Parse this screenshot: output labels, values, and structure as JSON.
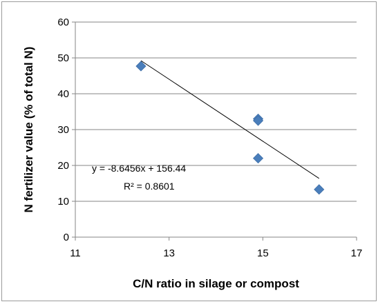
{
  "chart_data": {
    "type": "scatter",
    "xlabel": "C/N ratio in silage or compost",
    "ylabel": "N fertilizer value (% of total N)",
    "xlim": [
      11,
      17
    ],
    "ylim": [
      0,
      60
    ],
    "x_ticks": [
      11,
      13,
      15,
      17
    ],
    "y_ticks": [
      0,
      10,
      20,
      30,
      40,
      50,
      60
    ],
    "grid": "horizontal",
    "legend": "none",
    "series": [
      {
        "color": "#4a7ebb",
        "marker": "diamond",
        "points": [
          {
            "x": 12.4,
            "y": 47.7
          },
          {
            "x": 14.9,
            "y": 33.0
          },
          {
            "x": 14.9,
            "y": 32.5
          },
          {
            "x": 14.9,
            "y": 22.0
          },
          {
            "x": 16.2,
            "y": 13.3
          }
        ]
      }
    ],
    "trendline": {
      "type": "linear",
      "slope": -8.6456,
      "intercept": 156.44,
      "x_range": [
        12.4,
        16.2
      ],
      "color": "#000000",
      "equation_label": "y = -8.6456x + 156.44",
      "r2_label": "R² = 0.8601"
    }
  }
}
